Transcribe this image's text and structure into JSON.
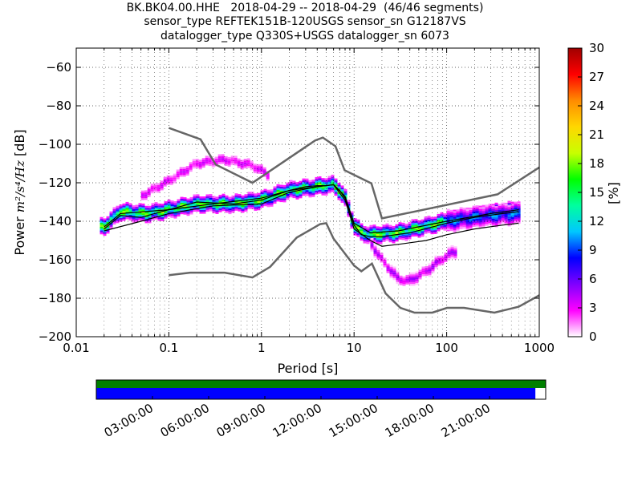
{
  "title_lines": [
    "BK.BK04.00.HHE   2018-04-29 -- 2018-04-29  (46/46 segments)",
    "sensor_type REFTEK151B-120USGS sensor_sn G12187VS",
    "datalogger_type Q330S+USGS datalogger_sn 6073"
  ],
  "chart_data": {
    "type": "heatmap",
    "xlabel": "Period [s]",
    "ylabel_prefix": "Power ",
    "ylabel_unit": "m²/s⁴/Hz",
    "ylabel_suffix": " [dB]",
    "x_scale": "log",
    "xlim": [
      0.01,
      1000
    ],
    "ylim": [
      -200,
      -50
    ],
    "x_ticks": [
      {
        "value": 0.01,
        "label": "0.01"
      },
      {
        "value": 0.1,
        "label": "0.1"
      },
      {
        "value": 1,
        "label": "1"
      },
      {
        "value": 10,
        "label": "10"
      },
      {
        "value": 100,
        "label": "100"
      },
      {
        "value": 1000,
        "label": "1000"
      }
    ],
    "y_ticks": [
      -60,
      -80,
      -100,
      -120,
      -140,
      -160,
      -180,
      -200
    ],
    "grid": true,
    "colorbar": {
      "label": "[%]",
      "range": [
        0,
        30
      ],
      "ticks": [
        0,
        3,
        6,
        9,
        12,
        15,
        18,
        21,
        24,
        27,
        30
      ],
      "colors": [
        "#ffffff",
        "#ff00ff",
        "#7f00ff",
        "#0000ff",
        "#00c8ff",
        "#00ff9e",
        "#00ff00",
        "#c8ff00",
        "#ffd700",
        "#ff8c00",
        "#ff0000",
        "#a00000"
      ]
    },
    "lines": [
      {
        "role": "high_noise_model",
        "color": "#666666",
        "points": [
          [
            0.1,
            -91.5
          ],
          [
            0.22,
            -97.4
          ],
          [
            0.32,
            -110.5
          ],
          [
            0.8,
            -120
          ],
          [
            3.8,
            -98
          ],
          [
            4.6,
            -96.5
          ],
          [
            6.3,
            -101
          ],
          [
            7.9,
            -113.5
          ],
          [
            15.4,
            -120.3
          ],
          [
            20,
            -138.5
          ],
          [
            354,
            -126
          ],
          [
            1000,
            -112
          ]
        ]
      },
      {
        "role": "low_noise_model",
        "color": "#666666",
        "points": [
          [
            0.1,
            -168
          ],
          [
            0.17,
            -166.7
          ],
          [
            0.4,
            -166.7
          ],
          [
            0.8,
            -169.2
          ],
          [
            1.24,
            -163.7
          ],
          [
            2.4,
            -148.5
          ],
          [
            4.3,
            -141.5
          ],
          [
            5,
            -141
          ],
          [
            6,
            -149
          ],
          [
            10,
            -163
          ],
          [
            12,
            -166
          ],
          [
            15.6,
            -162
          ],
          [
            21.9,
            -177.5
          ],
          [
            31.6,
            -185
          ],
          [
            45,
            -187.5
          ],
          [
            70,
            -187.5
          ],
          [
            101,
            -185
          ],
          [
            154,
            -185
          ],
          [
            328,
            -187.5
          ],
          [
            600,
            -184.4
          ],
          [
            1000,
            -178.5
          ]
        ]
      },
      {
        "role": "mode",
        "color": "#000000",
        "points": [
          [
            0.02,
            -144
          ],
          [
            0.03,
            -137
          ],
          [
            0.05,
            -138
          ],
          [
            0.1,
            -134
          ],
          [
            0.2,
            -130
          ],
          [
            0.5,
            -131
          ],
          [
            1,
            -129
          ],
          [
            2,
            -124
          ],
          [
            3,
            -122
          ],
          [
            4,
            -121.5
          ],
          [
            5,
            -121.5
          ],
          [
            6,
            -121
          ],
          [
            7,
            -124
          ],
          [
            8,
            -128
          ],
          [
            10,
            -142
          ],
          [
            12,
            -147
          ],
          [
            15,
            -148
          ],
          [
            20,
            -148
          ],
          [
            40,
            -146
          ],
          [
            100,
            -141
          ],
          [
            200,
            -138
          ],
          [
            400,
            -136
          ],
          [
            600,
            -135
          ]
        ]
      },
      {
        "role": "min",
        "color": "#000000",
        "points": [
          [
            0.02,
            -145
          ],
          [
            0.05,
            -140
          ],
          [
            0.1,
            -136
          ],
          [
            0.3,
            -132
          ],
          [
            1,
            -131
          ],
          [
            2,
            -125
          ],
          [
            4,
            -122
          ],
          [
            6,
            -121
          ],
          [
            8,
            -129
          ],
          [
            10,
            -144
          ],
          [
            15,
            -150
          ],
          [
            20,
            -153
          ],
          [
            30,
            -152
          ],
          [
            60,
            -150
          ],
          [
            100,
            -147
          ],
          [
            200,
            -144
          ],
          [
            400,
            -142
          ],
          [
            600,
            -141
          ]
        ]
      },
      {
        "role": "max",
        "color": "#000000",
        "points": [
          [
            0.02,
            -143
          ],
          [
            0.03,
            -136
          ],
          [
            0.1,
            -134
          ],
          [
            0.3,
            -131
          ],
          [
            1,
            -128
          ],
          [
            2,
            -124
          ],
          [
            4,
            -122
          ],
          [
            6,
            -121
          ],
          [
            8,
            -127
          ],
          [
            10,
            -141
          ],
          [
            15,
            -146
          ],
          [
            30,
            -145
          ],
          [
            100,
            -140
          ],
          [
            300,
            -136
          ],
          [
            600,
            -134
          ]
        ]
      }
    ],
    "density_bands": [
      {
        "start": 0.018,
        "end": 600,
        "points": [
          [
            0.02,
            -143
          ],
          [
            0.03,
            -135
          ],
          [
            0.06,
            -136
          ],
          [
            0.1,
            -134
          ],
          [
            0.2,
            -131
          ],
          [
            0.5,
            -131
          ],
          [
            1,
            -129
          ],
          [
            2,
            -124
          ],
          [
            4,
            -122
          ],
          [
            6,
            -121
          ],
          [
            7,
            -124
          ],
          [
            8,
            -128
          ],
          [
            10,
            -142
          ],
          [
            12,
            -146
          ],
          [
            15,
            -147
          ],
          [
            30,
            -146
          ],
          [
            100,
            -140
          ],
          [
            300,
            -136
          ],
          [
            600,
            -134
          ]
        ],
        "spread": 4,
        "peak_percent": 19
      },
      {
        "start": 0.05,
        "end": 1.2,
        "points": [
          [
            0.05,
            -127
          ],
          [
            0.1,
            -119
          ],
          [
            0.2,
            -110
          ],
          [
            0.4,
            -108
          ],
          [
            0.8,
            -111
          ],
          [
            1.2,
            -116
          ]
        ],
        "spread": 3,
        "peak_percent": 4
      },
      {
        "start": 15,
        "end": 120,
        "points": [
          [
            15,
            -151
          ],
          [
            20,
            -160
          ],
          [
            30,
            -170
          ],
          [
            40,
            -171
          ],
          [
            60,
            -166
          ],
          [
            100,
            -158
          ],
          [
            120,
            -156
          ]
        ],
        "spread": 3,
        "peak_percent": 5
      },
      {
        "start": 100,
        "end": 600,
        "points": [
          [
            100,
            -140
          ],
          [
            200,
            -138
          ],
          [
            300,
            -137
          ],
          [
            600,
            -136
          ]
        ],
        "spread": 5,
        "peak_percent": 11
      }
    ]
  },
  "timeline": {
    "labels": [
      "03:00:00",
      "06:00:00",
      "09:00:00",
      "12:00:00",
      "15:00:00",
      "18:00:00",
      "21:00:00"
    ],
    "hours": [
      3,
      6,
      9,
      12,
      15,
      18,
      21
    ],
    "range_hours": [
      0,
      24
    ],
    "top_bar_color": "#008000",
    "bottom_bar_color": "#0000ff",
    "top_bar_fraction": 1.0,
    "bottom_bar_fraction": 0.977
  }
}
